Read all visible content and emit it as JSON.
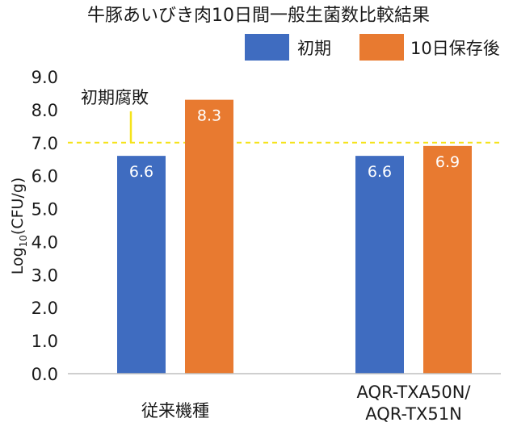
{
  "chart_data": {
    "type": "bar",
    "title": "牛豚あいびき肉10日間一般生菌数比較結果",
    "ylabel_base": "Log",
    "ylabel_sub": "10",
    "ylabel_suffix": "(CFU/g)",
    "ylim": [
      0,
      9
    ],
    "yticks": [
      "0.0",
      "1.0",
      "2.0",
      "3.0",
      "4.0",
      "5.0",
      "6.0",
      "7.0",
      "8.0",
      "9.0"
    ],
    "categories": [
      {
        "lines": [
          "従来機種"
        ]
      },
      {
        "lines": [
          "AQR-TXA50N/",
          "AQR-TX51N"
        ]
      }
    ],
    "series": [
      {
        "name": "初期",
        "color": "#3f6cc0",
        "values": [
          6.6,
          6.6
        ],
        "labels": [
          "6.6",
          "6.6"
        ]
      },
      {
        "name": "10日保存後",
        "color": "#e87a30",
        "values": [
          8.3,
          6.9
        ],
        "labels": [
          "8.3",
          "6.9"
        ]
      }
    ],
    "threshold": {
      "value": 7.0,
      "color": "#f5e31a",
      "label": "初期腐敗"
    },
    "legend_position": "top-right",
    "grid": false
  }
}
